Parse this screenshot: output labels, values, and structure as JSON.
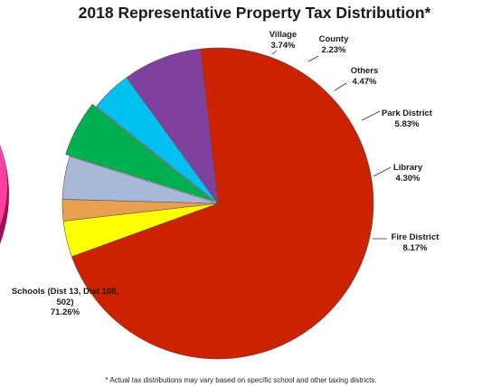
{
  "chart_data": {
    "type": "pie",
    "title": "2018 Representative Property Tax Distribution*",
    "slices": [
      {
        "name": "Schools (Dist 13, Dist 108, 502)",
        "value": 71.26,
        "value_label": "71.26%",
        "color": "#cc2200"
      },
      {
        "name": "Village",
        "value": 3.74,
        "value_label": "3.74%",
        "color": "#ffff00"
      },
      {
        "name": "County",
        "value": 2.23,
        "value_label": "2.23%",
        "color": "#e8a050"
      },
      {
        "name": "Others",
        "value": 4.47,
        "value_label": "4.47%",
        "color": "#a8b8d8"
      },
      {
        "name": "Park District",
        "value": 5.83,
        "value_label": "5.83%",
        "color": "#00b050"
      },
      {
        "name": "Library",
        "value": 4.3,
        "value_label": "4.30%",
        "color": "#00c0f0"
      },
      {
        "name": "Fire District",
        "value": 8.17,
        "value_label": "8.17%",
        "color": "#8040a0"
      }
    ],
    "footnote": "* Actual tax distributions may vary based on specific school and other taxing districts."
  }
}
